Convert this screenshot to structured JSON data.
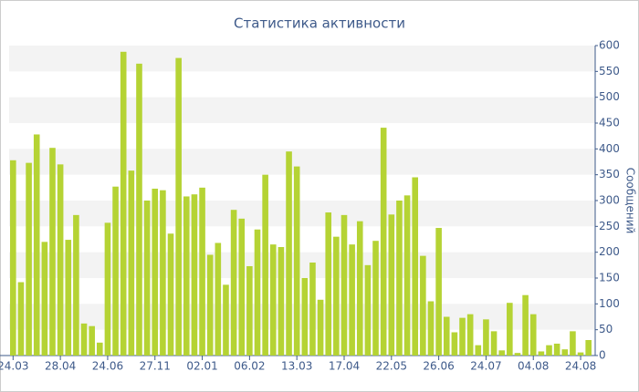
{
  "chart_data": {
    "type": "bar",
    "title": "Статистика активности",
    "y_axis_label": "Сообщений",
    "categories": [
      "24.03",
      null,
      null,
      null,
      null,
      null,
      "28.04",
      null,
      null,
      null,
      null,
      null,
      "24.06",
      null,
      null,
      null,
      null,
      null,
      "27.11",
      null,
      null,
      null,
      null,
      null,
      "02.01",
      null,
      null,
      null,
      null,
      null,
      "06.02",
      null,
      null,
      null,
      null,
      null,
      "13.03",
      null,
      null,
      null,
      null,
      null,
      "17.04",
      null,
      null,
      null,
      null,
      null,
      "22.05",
      null,
      null,
      null,
      null,
      null,
      "26.06",
      null,
      null,
      null,
      null,
      null,
      "24.07",
      null,
      null,
      null,
      null,
      null,
      "04.08",
      null,
      null,
      null,
      null,
      null,
      "24.08",
      null
    ],
    "values": [
      378,
      142,
      373,
      428,
      220,
      402,
      370,
      224,
      272,
      62,
      57,
      25,
      257,
      327,
      588,
      358,
      565,
      300,
      323,
      320,
      236,
      576,
      308,
      312,
      325,
      195,
      218,
      137,
      282,
      265,
      173,
      244,
      350,
      215,
      210,
      395,
      366,
      150,
      180,
      108,
      277,
      230,
      272,
      215,
      260,
      175,
      222,
      441,
      273,
      300,
      310,
      345,
      193,
      105,
      247,
      75,
      45,
      73,
      80,
      20,
      70,
      47,
      10,
      102,
      5,
      117,
      80,
      8,
      20,
      23,
      12,
      47,
      6,
      30
    ],
    "color": "#b5d334",
    "ylim": [
      0,
      600
    ],
    "yticks": [
      0,
      50,
      100,
      150,
      200,
      250,
      300,
      350,
      400,
      450,
      500,
      550,
      600
    ],
    "grid": true
  }
}
